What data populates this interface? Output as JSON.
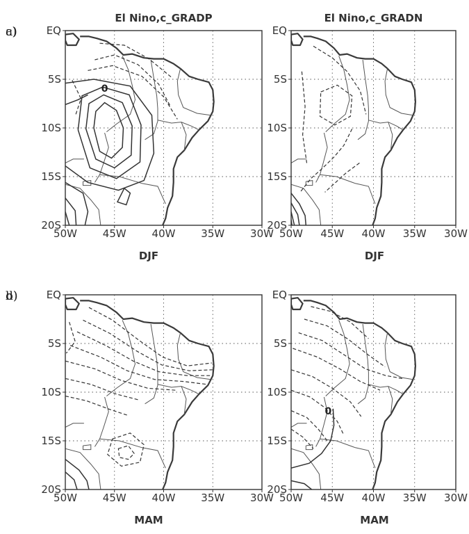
{
  "chart_data": [
    {
      "type": "contour",
      "panel_label": "a)",
      "title": "El Nino,c_GRADP",
      "xlabel": "DJF",
      "xticks": [
        "50W",
        "45W",
        "40W",
        "35W",
        "30W"
      ],
      "yticks": [
        "EQ",
        "5S",
        "10S",
        "15S",
        "20S"
      ],
      "xlim": [
        -50,
        -30
      ],
      "ylim": [
        -20,
        0
      ],
      "contour_labels": [
        {
          "text": "0",
          "lon": -46,
          "lat": -6
        }
      ],
      "grid": true
    },
    {
      "type": "contour",
      "panel_label": "c)",
      "title": "El Nino,c_GRADN",
      "xlabel": "DJF",
      "xticks": [
        "50W",
        "45W",
        "40W",
        "35W",
        "30W"
      ],
      "yticks": [
        "EQ",
        "5S",
        "10S",
        "15S",
        "20S"
      ],
      "xlim": [
        -50,
        -30
      ],
      "ylim": [
        -20,
        0
      ],
      "contour_labels": [],
      "grid": true
    },
    {
      "type": "contour",
      "panel_label": "b)",
      "title": "",
      "xlabel": "MAM",
      "xticks": [
        "50W",
        "45W",
        "40W",
        "35W",
        "30W"
      ],
      "yticks": [
        "EQ",
        "5S",
        "10S",
        "15S",
        "20S"
      ],
      "xlim": [
        -50,
        -30
      ],
      "ylim": [
        -20,
        0
      ],
      "contour_labels": [],
      "grid": true
    },
    {
      "type": "contour",
      "panel_label": "d)",
      "title": "",
      "xlabel": "MAM",
      "xticks": [
        "50W",
        "45W",
        "40W",
        "35W",
        "30W"
      ],
      "yticks": [
        "EQ",
        "5S",
        "10S",
        "15S",
        "20S"
      ],
      "xlim": [
        -50,
        -30
      ],
      "ylim": [
        -20,
        0
      ],
      "contour_labels": [
        {
          "text": "0",
          "lon": -45.5,
          "lat": -12
        }
      ],
      "grid": true
    }
  ]
}
